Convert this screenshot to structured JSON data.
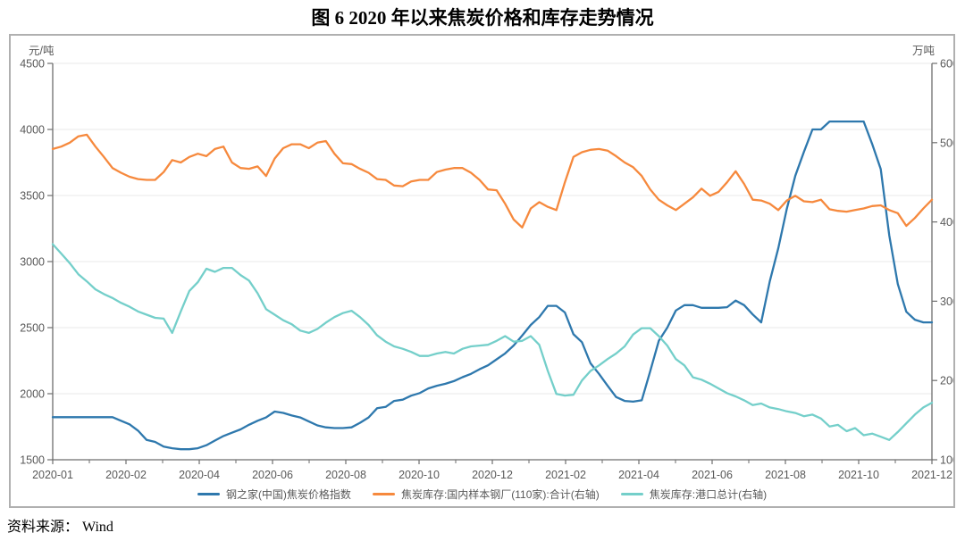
{
  "title": "图 6  2020 年以来焦炭价格和库存走势情况",
  "source": "资料来源： Wind",
  "colors": {
    "price_blue": "#2e78ad",
    "mill_orange": "#f6893d",
    "port_teal": "#74cfca",
    "grid": "#eaeaea",
    "axis": "#6e6e6e",
    "tick_text": "#595959",
    "frame_border": "#b0b0b0"
  },
  "chart_data": {
    "type": "line",
    "title": "图 6  2020 年以来焦炭价格和库存走势情况",
    "grid": true,
    "legend_position": "bottom",
    "x_labels": [
      "2020-01",
      "2020-02",
      "2020-04",
      "2020-06",
      "2020-08",
      "2020-10",
      "2020-12",
      "2021-02",
      "2021-04",
      "2021-06",
      "2021-08",
      "2021-10",
      "2021-12"
    ],
    "left_axis": {
      "unit": "元/吨",
      "min": 1500,
      "max": 4500,
      "ticks": [
        4500,
        4000,
        3500,
        3000,
        2500,
        2000,
        1500
      ]
    },
    "right_axis": {
      "unit": "万吨",
      "min": 100,
      "max": 600,
      "ticks": [
        600,
        500,
        400,
        300,
        200,
        100
      ]
    },
    "series": [
      {
        "name": "钢之家(中国)焦炭价格指数",
        "axis": "left",
        "color": "#2e78ad",
        "values": [
          1822,
          1822,
          1822,
          1822,
          1822,
          1822,
          1822,
          1822,
          1795,
          1768,
          1720,
          1650,
          1635,
          1600,
          1587,
          1580,
          1580,
          1587,
          1610,
          1645,
          1680,
          1705,
          1730,
          1765,
          1795,
          1820,
          1865,
          1855,
          1835,
          1820,
          1790,
          1760,
          1745,
          1740,
          1740,
          1745,
          1780,
          1820,
          1890,
          1900,
          1945,
          1955,
          1985,
          2005,
          2040,
          2060,
          2075,
          2095,
          2125,
          2150,
          2185,
          2215,
          2260,
          2305,
          2365,
          2440,
          2520,
          2580,
          2665,
          2665,
          2615,
          2450,
          2390,
          2230,
          2150,
          2060,
          1975,
          1945,
          1940,
          1950,
          2170,
          2400,
          2500,
          2630,
          2670,
          2670,
          2650,
          2650,
          2650,
          2655,
          2705,
          2670,
          2600,
          2540,
          2850,
          3100,
          3400,
          3650,
          3830,
          4000,
          4000,
          4060,
          4060,
          4060,
          4060,
          4060,
          3890,
          3700,
          3200,
          2830,
          2620,
          2560,
          2540,
          2540
        ]
      },
      {
        "name": "焦炭库存:国内样本钢厂(110家):合计(右轴)",
        "axis": "right",
        "color": "#f6893d",
        "values": [
          492,
          495,
          500,
          508,
          510,
          495,
          482,
          468,
          462,
          457,
          454,
          453,
          453,
          463,
          478,
          475,
          482,
          486,
          483,
          492,
          495,
          475,
          468,
          467,
          470,
          458,
          480,
          493,
          498,
          498,
          493,
          500,
          502,
          486,
          474,
          473,
          467,
          462,
          454,
          453,
          446,
          445,
          451,
          453,
          453,
          463,
          466,
          468,
          468,
          462,
          453,
          441,
          440,
          423,
          403,
          393,
          417,
          425,
          419,
          415,
          450,
          482,
          488,
          491,
          492,
          490,
          483,
          475,
          469,
          458,
          441,
          428,
          421,
          415,
          423,
          431,
          442,
          433,
          438,
          450,
          464,
          448,
          428,
          427,
          423,
          415,
          427,
          433,
          426,
          425,
          428,
          416,
          414,
          413,
          415,
          417,
          420,
          421,
          415,
          411,
          395,
          405,
          417,
          428
        ]
      },
      {
        "name": "焦炭库存:港口总计(右轴)",
        "axis": "right",
        "color": "#74cfca",
        "values": [
          372,
          360,
          348,
          334,
          325,
          315,
          309,
          304,
          298,
          293,
          287,
          283,
          279,
          278,
          260,
          287,
          313,
          324,
          341,
          337,
          342,
          342,
          333,
          326,
          310,
          290,
          283,
          276,
          271,
          263,
          260,
          265,
          273,
          280,
          285,
          288,
          280,
          270,
          257,
          249,
          243,
          240,
          236,
          231,
          231,
          234,
          236,
          234,
          240,
          243,
          244,
          245,
          250,
          256,
          249,
          250,
          256,
          245,
          212,
          183,
          181,
          182,
          200,
          212,
          219,
          227,
          234,
          243,
          258,
          266,
          266,
          256,
          244,
          227,
          219,
          204,
          201,
          196,
          190,
          184,
          180,
          175,
          169,
          171,
          166,
          164,
          161,
          159,
          155,
          157,
          152,
          142,
          144,
          136,
          140,
          131,
          133,
          129,
          125,
          135,
          146,
          157,
          166,
          172
        ]
      }
    ]
  }
}
